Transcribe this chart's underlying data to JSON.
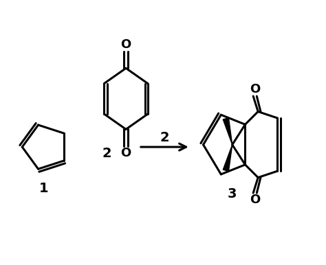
{
  "background_color": "#ffffff",
  "line_color": "#000000",
  "line_width": 2.2,
  "arrow_label": "2",
  "compound_labels": [
    "1",
    "2",
    "3"
  ],
  "figsize": [
    4.74,
    3.86
  ],
  "dpi": 100,
  "label_fontsize": 14,
  "o_fontsize": 13,
  "arrow_label_fontsize": 14
}
